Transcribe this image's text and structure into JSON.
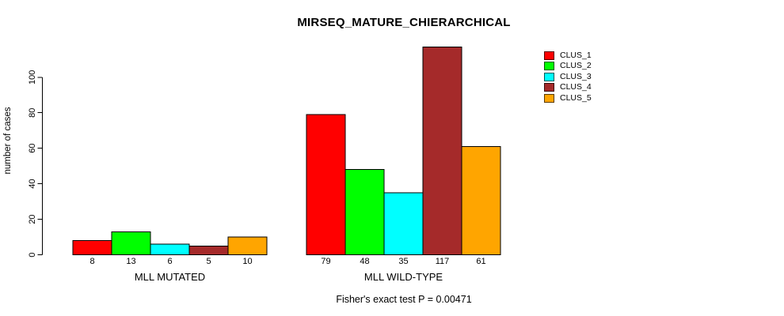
{
  "figure": {
    "title": "MIRSEQ_MATURE_CHIERARCHICAL",
    "annotation": "Fisher's exact test P = 0.00471"
  },
  "chart_data": {
    "type": "bar",
    "title": "MIRSEQ_MATURE_CHIERARCHICAL",
    "xlabel": "",
    "ylabel": "number of cases",
    "ylim": [
      0,
      100
    ],
    "yticks": [
      0,
      20,
      40,
      60,
      80,
      100
    ],
    "grid": false,
    "legend_position": "top-right",
    "bar_value_labels_shown": true,
    "series_labels": [
      "CLUS_1",
      "CLUS_2",
      "CLUS_3",
      "CLUS_4",
      "CLUS_5"
    ],
    "series_colors": [
      "#ff0000",
      "#00ff00",
      "#00ffff",
      "#a52a2a",
      "#ffa500"
    ],
    "bar_border_color": "#000000",
    "groups": [
      {
        "label": "MLL MUTATED",
        "values": [
          8,
          13,
          6,
          5,
          10
        ]
      },
      {
        "label": "MLL WILD-TYPE",
        "values": [
          79,
          48,
          35,
          117,
          61
        ]
      }
    ],
    "annotation": "Fisher's exact test P = 0.00471"
  }
}
